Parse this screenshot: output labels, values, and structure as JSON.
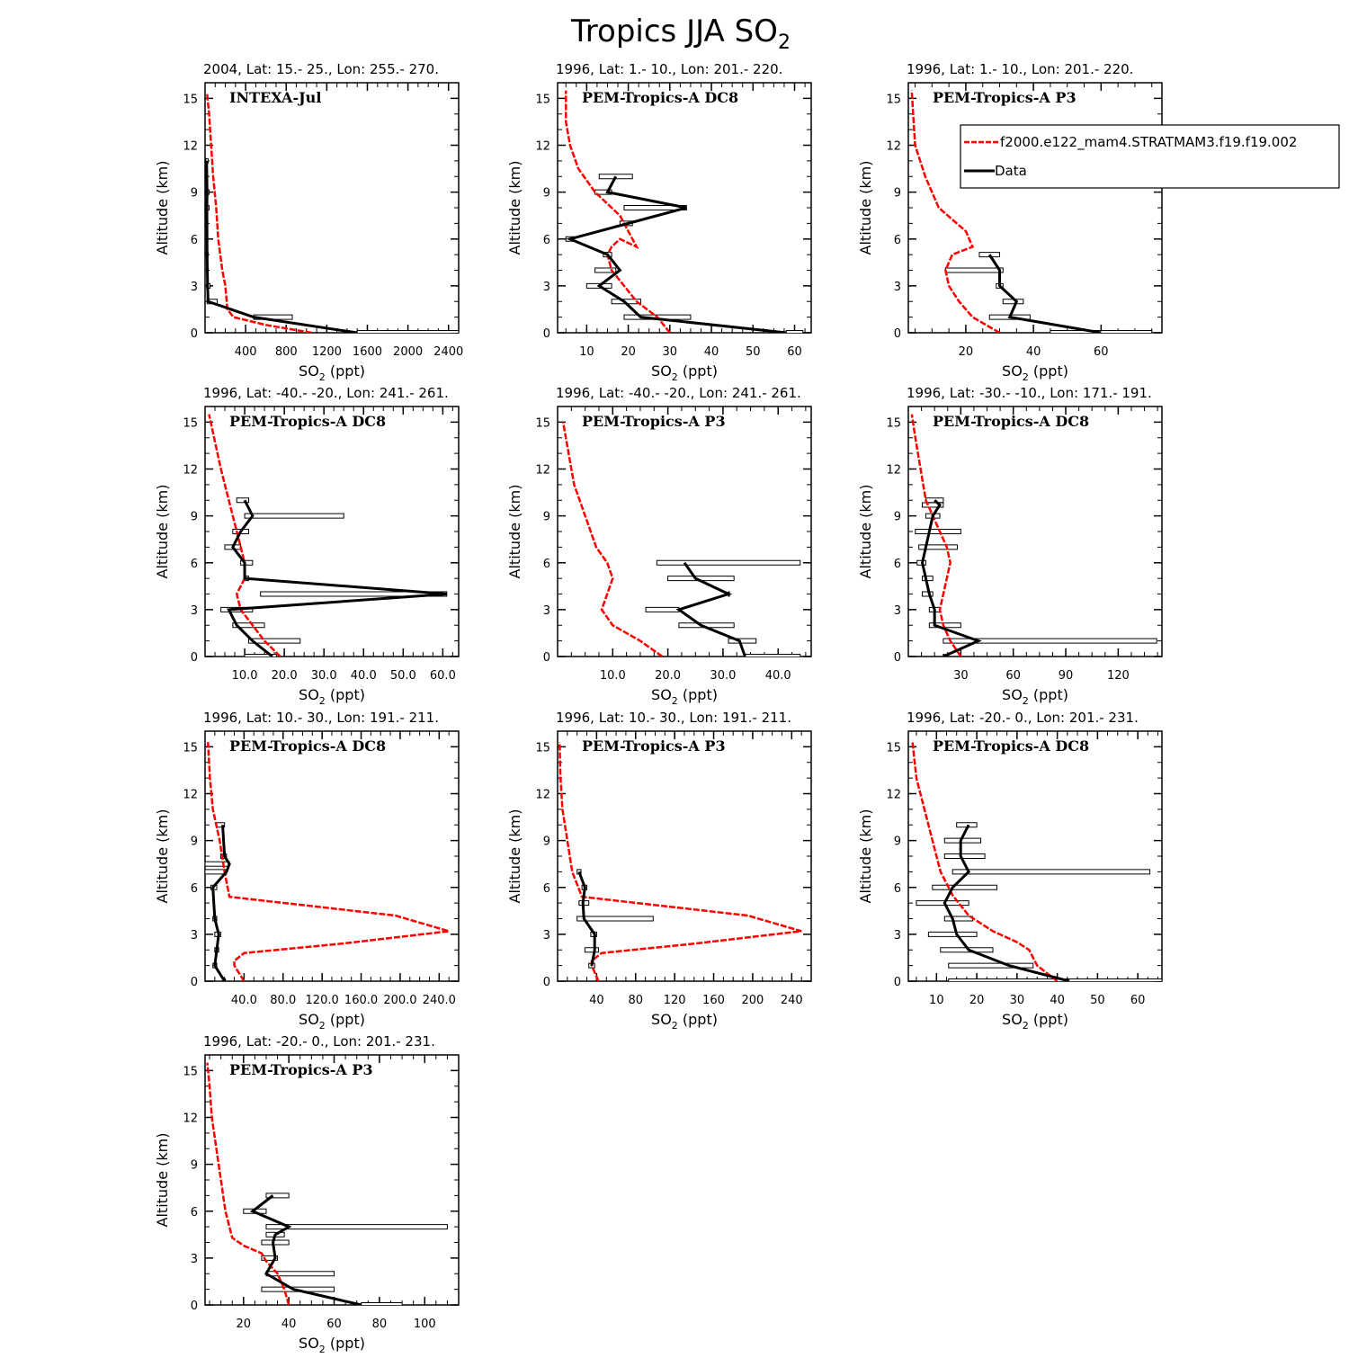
{
  "figure": {
    "title_main": "Tropics JJA SO",
    "title_sub": "2"
  },
  "colors": {
    "model": "#ff0000",
    "data": "#000000"
  },
  "legend": {
    "model_label": "f2000.e122_mam4.STRATMAM3.f19.f19.002",
    "data_label": "Data"
  },
  "chart_data": [
    {
      "type": "line",
      "title": "2004, Lat: 15.- 25., Lon: 255.- 270.",
      "campaign": "INTEXA-Jul",
      "xlabel": "SO2 (ppt)",
      "ylabel": "Altitude (km)",
      "xlim": [
        0,
        2500
      ],
      "ylim": [
        0,
        16
      ],
      "xticks": [
        400,
        800,
        1200,
        1600,
        2000,
        2400
      ],
      "xtick_labels": [
        "400",
        "800",
        "1200",
        "1600",
        "2000",
        "2400"
      ],
      "yticks": [
        0,
        3,
        6,
        9,
        12,
        15
      ],
      "model": {
        "x": [
          1050,
          600,
          280,
          220,
          200,
          170,
          130,
          110,
          80,
          60,
          40,
          20
        ],
        "y": [
          0,
          0.5,
          1,
          1.5,
          3,
          4,
          6,
          8,
          10,
          12,
          14,
          15.3
        ]
      },
      "obs": {
        "x": [
          1500,
          480,
          30,
          25,
          20,
          18,
          20,
          15
        ],
        "y": [
          0,
          1,
          2,
          3,
          5,
          8,
          9,
          11
        ],
        "xerr_lo": [
          1500,
          480,
          20,
          15,
          10,
          10,
          10,
          8
        ],
        "xerr_hi": [
          2500,
          860,
          120,
          50,
          30,
          40,
          40,
          30
        ]
      }
    },
    {
      "type": "line",
      "title": "1996, Lat: 1.- 10., Lon: 201.- 220.",
      "campaign": "PEM-Tropics-A DC8",
      "xlabel": "SO2 (ppt)",
      "ylabel": "Altitude (km)",
      "xlim": [
        3,
        64
      ],
      "ylim": [
        0,
        16
      ],
      "xticks": [
        10,
        20,
        30,
        40,
        50,
        60
      ],
      "xtick_labels": [
        "10",
        "20",
        "30",
        "40",
        "50",
        "60"
      ],
      "yticks": [
        0,
        3,
        6,
        9,
        12,
        15
      ],
      "model": {
        "x": [
          30,
          27,
          22,
          19,
          16,
          15,
          16,
          18,
          22,
          18,
          12,
          8,
          6,
          5,
          5
        ],
        "y": [
          0,
          1,
          2,
          3,
          4,
          5,
          5.5,
          6,
          5.5,
          7.5,
          9,
          10.5,
          12,
          13.5,
          15.5
        ]
      },
      "obs": {
        "x": [
          58,
          23,
          19,
          13,
          18,
          15,
          6,
          20,
          34,
          15,
          17
        ],
        "y": [
          0,
          1,
          2,
          3,
          4,
          5,
          6,
          7,
          8,
          9,
          10
        ],
        "xerr_lo": [
          58,
          19,
          16,
          10,
          12,
          14,
          5,
          18,
          19,
          12,
          13
        ],
        "xerr_hi": [
          62,
          35,
          23,
          16,
          17,
          16,
          7,
          21,
          34,
          16,
          21
        ]
      }
    },
    {
      "type": "line",
      "title": "1996, Lat: 1.- 10., Lon: 201.- 220.",
      "campaign": "PEM-Tropics-A P3",
      "xlabel": "SO2 (ppt)",
      "ylabel": "Altitude (km)",
      "xlim": [
        3,
        78
      ],
      "ylim": [
        0,
        16
      ],
      "xticks": [
        20,
        40,
        60
      ],
      "xtick_labels": [
        "20",
        "40",
        "60"
      ],
      "yticks": [
        0,
        3,
        6,
        9,
        12,
        15
      ],
      "model": {
        "x": [
          30,
          22,
          18,
          15,
          14,
          16,
          22,
          20,
          12,
          8,
          5,
          4
        ],
        "y": [
          0,
          1,
          2,
          3,
          4,
          5,
          5.5,
          6.5,
          8,
          10,
          12,
          15.5
        ]
      },
      "obs": {
        "x": [
          60,
          33,
          35,
          30,
          30,
          27
        ],
        "y": [
          0,
          1,
          2,
          3,
          4,
          5
        ],
        "xerr_lo": [
          45,
          27,
          31,
          29,
          14,
          24
        ],
        "xerr_hi": [
          75,
          39,
          37,
          31,
          31,
          30
        ]
      }
    },
    {
      "type": "line",
      "title": "1996, Lat: -40.- -20., Lon: 241.- 261.",
      "campaign": "PEM-Tropics-A DC8",
      "xlabel": "SO2 (ppt)",
      "ylabel": "Altitude (km)",
      "xlim": [
        0,
        64
      ],
      "ylim": [
        0,
        16
      ],
      "xticks": [
        10,
        20,
        30,
        40,
        50,
        60
      ],
      "xtick_labels": [
        "10.0",
        "20.0",
        "30.0",
        "40.0",
        "50.0",
        "60.0"
      ],
      "yticks": [
        0,
        3,
        6,
        9,
        12,
        15
      ],
      "model": {
        "x": [
          19,
          15,
          12,
          9,
          8,
          10,
          10,
          9,
          8,
          7,
          6,
          4,
          1
        ],
        "y": [
          0,
          1,
          2,
          3,
          4,
          5,
          6,
          7,
          8,
          9,
          10,
          12,
          15.5
        ]
      },
      "obs": {
        "x": [
          17,
          12,
          8,
          6,
          61,
          10,
          10,
          7,
          9,
          12,
          10
        ],
        "y": [
          0,
          1,
          2,
          3,
          4,
          5,
          6,
          7,
          8,
          9,
          10
        ],
        "xerr_lo": [
          10,
          11,
          7,
          4,
          14,
          10,
          9,
          5,
          7,
          10,
          8
        ],
        "xerr_hi": [
          18,
          24,
          15,
          12,
          61,
          11,
          12,
          9,
          11,
          35,
          11
        ]
      }
    },
    {
      "type": "line",
      "title": "1996, Lat: -40.- -20., Lon: 241.- 261.",
      "campaign": "PEM-Tropics-A P3",
      "xlabel": "SO2 (ppt)",
      "ylabel": "Altitude (km)",
      "xlim": [
        0,
        46
      ],
      "ylim": [
        0,
        16
      ],
      "xticks": [
        10,
        20,
        30,
        40
      ],
      "xtick_labels": [
        "10.0",
        "20.0",
        "30.0",
        "40.0"
      ],
      "yticks": [
        0,
        3,
        6,
        9,
        12,
        15
      ],
      "model": {
        "x": [
          19,
          15,
          10,
          8,
          9,
          10,
          9,
          7,
          6,
          5,
          3,
          2,
          1
        ],
        "y": [
          0,
          1,
          2,
          3,
          4,
          5,
          6,
          7,
          8,
          9,
          11,
          13,
          15
        ]
      },
      "obs": {
        "x": [
          34,
          33,
          26,
          22,
          31,
          25,
          23
        ],
        "y": [
          0,
          1,
          2,
          3,
          4,
          5,
          6
        ],
        "xerr_lo": [
          34,
          31,
          22,
          16,
          31,
          20,
          18
        ],
        "xerr_hi": [
          44,
          36,
          32,
          22,
          31,
          32,
          44
        ]
      }
    },
    {
      "type": "line",
      "title": "1996, Lat: -30.- -10., Lon: 171.- 191.",
      "campaign": "PEM-Tropics-A DC8",
      "xlabel": "SO2 (ppt)",
      "ylabel": "Altitude (km)",
      "xlim": [
        0,
        145
      ],
      "ylim": [
        0,
        16
      ],
      "xticks": [
        30,
        60,
        90,
        120
      ],
      "xtick_labels": [
        "30",
        "60",
        "90",
        "120"
      ],
      "yticks": [
        0,
        3,
        6,
        9,
        12,
        15
      ],
      "model": {
        "x": [
          30,
          24,
          20,
          18,
          20,
          22,
          24,
          22,
          18,
          14,
          10,
          7,
          4,
          2
        ],
        "y": [
          0,
          1,
          2,
          3,
          4,
          5,
          6,
          7,
          8,
          9,
          10,
          12,
          14,
          15.5
        ]
      },
      "obs": {
        "x": [
          20,
          40,
          15,
          15,
          12,
          10,
          8,
          10,
          12,
          14,
          18,
          15
        ],
        "y": [
          0,
          1,
          2,
          3,
          4,
          5,
          6,
          7,
          8,
          9,
          9.7,
          10
        ],
        "xerr_lo": [
          20,
          20,
          12,
          12,
          8,
          8,
          5,
          6,
          4,
          10,
          8,
          10
        ],
        "xerr_hi": [
          20,
          142,
          30,
          18,
          14,
          14,
          10,
          28,
          30,
          18,
          20,
          20
        ]
      }
    },
    {
      "type": "line",
      "title": "1996, Lat: 10.- 30., Lon: 191.- 211.",
      "campaign": "PEM-Tropics-A DC8",
      "xlabel": "SO2 (ppt)",
      "ylabel": "Altitude (km)",
      "xlim": [
        0,
        260
      ],
      "ylim": [
        0,
        16
      ],
      "xticks": [
        40,
        80,
        120,
        160,
        200,
        240
      ],
      "xtick_labels": [
        "40.0",
        "80.0",
        "120.0",
        "160.0",
        "200.0",
        "240.0"
      ],
      "yticks": [
        0,
        3,
        6,
        9,
        12,
        15
      ],
      "model": {
        "x": [
          40,
          30,
          30,
          40,
          140,
          250,
          195,
          25,
          20,
          15,
          8,
          5,
          3
        ],
        "y": [
          0,
          1,
          1.3,
          1.8,
          2.4,
          3.2,
          4.2,
          5.4,
          7,
          9,
          11,
          13,
          15.3
        ]
      },
      "obs": {
        "x": [
          20,
          10,
          12,
          14,
          10,
          8,
          22,
          25,
          20,
          18
        ],
        "y": [
          0,
          1,
          2,
          3,
          4,
          6,
          7,
          7.5,
          8,
          10
        ],
        "xerr_lo": [
          20,
          8,
          10,
          10,
          8,
          6,
          0,
          0,
          16,
          12
        ],
        "xerr_hi": [
          20,
          12,
          14,
          16,
          12,
          12,
          22,
          25,
          22,
          20
        ]
      }
    },
    {
      "type": "line",
      "title": "1996, Lat: 10.- 30., Lon: 191.- 211.",
      "campaign": "PEM-Tropics-A P3",
      "xlabel": "SO2 (ppt)",
      "ylabel": "Altitude (km)",
      "xlim": [
        0,
        260
      ],
      "ylim": [
        0,
        16
      ],
      "xticks": [
        40,
        80,
        120,
        160,
        200,
        240
      ],
      "xtick_labels": [
        "40",
        "80",
        "120",
        "160",
        "200",
        "240"
      ],
      "yticks": [
        0,
        3,
        6,
        9,
        12,
        15
      ],
      "model": {
        "x": [
          42,
          35,
          35,
          45,
          140,
          250,
          195,
          25,
          15,
          10,
          5,
          3,
          2
        ],
        "y": [
          0,
          1,
          1.3,
          1.8,
          2.4,
          3.2,
          4.2,
          5.4,
          7,
          9,
          11,
          13,
          15.3
        ]
      },
      "obs": {
        "x": [
          35,
          38,
          38,
          27,
          26,
          28,
          22
        ],
        "y": [
          1,
          2,
          3,
          4,
          5,
          6,
          7
        ],
        "xerr_lo": [
          32,
          28,
          34,
          20,
          22,
          25,
          20
        ],
        "xerr_hi": [
          38,
          42,
          40,
          98,
          32,
          30,
          24
        ]
      }
    },
    {
      "type": "line",
      "title": "1996, Lat: -20.- 0., Lon: 201.- 231.",
      "campaign": "PEM-Tropics-A DC8",
      "xlabel": "SO2 (ppt)",
      "ylabel": "Altitude (km)",
      "xlim": [
        3,
        66
      ],
      "ylim": [
        0,
        16
      ],
      "xticks": [
        10,
        20,
        30,
        40,
        50,
        60
      ],
      "xtick_labels": [
        "10",
        "20",
        "30",
        "40",
        "50",
        "60"
      ],
      "yticks": [
        0,
        3,
        6,
        9,
        12,
        15
      ],
      "model": {
        "x": [
          40,
          35,
          33,
          30,
          24,
          18,
          14,
          11,
          9,
          7,
          5,
          4
        ],
        "y": [
          0,
          1,
          2,
          2.5,
          3.2,
          4.2,
          5.5,
          7,
          9,
          11,
          13,
          15.4
        ]
      },
      "obs": {
        "x": [
          43,
          28,
          18,
          15,
          14,
          12,
          14,
          18,
          16,
          16,
          18
        ],
        "y": [
          0,
          1,
          2,
          3,
          4,
          5,
          6,
          7,
          8,
          9,
          10
        ],
        "xerr_lo": [
          13,
          13,
          11,
          8,
          12,
          5,
          9,
          14,
          12,
          12,
          15
        ],
        "xerr_hi": [
          66,
          34,
          24,
          20,
          19,
          18,
          25,
          63,
          22,
          21,
          20
        ]
      }
    },
    {
      "type": "line",
      "title": "1996, Lat: -20.- 0., Lon: 201.- 231.",
      "campaign": "PEM-Tropics-A P3",
      "xlabel": "SO2 (ppt)",
      "ylabel": "Altitude (km)",
      "xlim": [
        3,
        115
      ],
      "ylim": [
        0,
        16
      ],
      "xticks": [
        20,
        40,
        60,
        80,
        100
      ],
      "xtick_labels": [
        "20",
        "40",
        "60",
        "80",
        "100"
      ],
      "yticks": [
        0,
        3,
        6,
        9,
        12,
        15
      ],
      "model": {
        "x": [
          40,
          38,
          35,
          30,
          28,
          20,
          15,
          12,
          10,
          8,
          6,
          5,
          4
        ],
        "y": [
          0,
          1,
          2,
          2.8,
          3.3,
          3.8,
          4.3,
          6,
          8,
          10,
          12,
          14,
          15.5
        ]
      },
      "obs": {
        "x": [
          72,
          42,
          30,
          34,
          33,
          34,
          40,
          24,
          33
        ],
        "y": [
          0,
          1,
          2,
          3,
          4,
          4.5,
          5,
          6,
          7
        ],
        "xerr_lo": [
          72,
          28,
          30,
          28,
          28,
          30,
          30,
          20,
          30
        ],
        "xerr_hi": [
          90,
          60,
          60,
          35,
          40,
          38,
          110,
          30,
          40
        ]
      }
    }
  ]
}
